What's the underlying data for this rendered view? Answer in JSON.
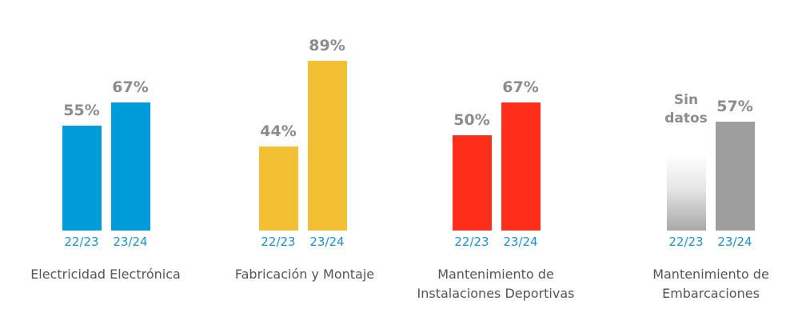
{
  "chart_data": {
    "type": "bar",
    "periods": [
      "22/23",
      "23/24"
    ],
    "ylim": [
      0,
      100
    ],
    "groups": [
      {
        "category_lines": [
          "Electricidad Electrónica"
        ],
        "color": "#009bd9",
        "values": [
          55,
          67
        ],
        "labels": [
          "55%",
          "67%"
        ]
      },
      {
        "category_lines": [
          "Fabricación y Montaje"
        ],
        "color": "#f3c033",
        "values": [
          44,
          89
        ],
        "labels": [
          "44%",
          "89%"
        ]
      },
      {
        "category_lines": [
          "Mantenimiento de",
          "Instalaciones Deportivas"
        ],
        "color": "#ff2e1a",
        "values": [
          50,
          67
        ],
        "labels": [
          "50%",
          "67%"
        ]
      },
      {
        "category_lines": [
          "Mantenimiento de",
          "Embarcaciones"
        ],
        "color": "#9e9e9e",
        "values": [
          null,
          57
        ],
        "labels": [
          "Sin datos",
          "57%"
        ],
        "nodata_lines": [
          "Sin",
          "datos"
        ]
      }
    ]
  }
}
